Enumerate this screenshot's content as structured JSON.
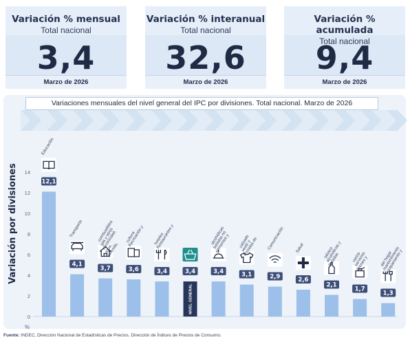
{
  "kpis": [
    {
      "title": "Variación % mensual",
      "subtitle": "Total nacional",
      "value": "3,4",
      "date": "Marzo de 2026"
    },
    {
      "title": "Variación % interanual",
      "subtitle": "Total nacional",
      "value": "32,6",
      "date": "Marzo de 2026"
    },
    {
      "title": "Variación % acumulada",
      "subtitle": "Total nacional",
      "value": "9,4",
      "date": "Marzo de 2026"
    }
  ],
  "source": {
    "label": "Fuente:",
    "text": "INDEC, Dirección Nacional de Estadísticas de Precios. Dirección de Índices de Precios de Consumo."
  },
  "colors": {
    "bar": "#9cc0e9",
    "bar_highlight": "#25365a",
    "label_box": "#3d4e78",
    "text": "#1f2a44"
  },
  "chart_data": {
    "type": "bar",
    "title": "Variaciones mensuales del nivel general del IPC por divisiones. Total nacional. Marzo de 2026",
    "ylabel": "Variación por divisiones",
    "yunit": "%",
    "ylim": [
      0,
      14
    ],
    "yticks": [
      0,
      2,
      4,
      6,
      8,
      10,
      12,
      14
    ],
    "grid": false,
    "highlight_index": 5,
    "highlight_text": "NIVEL GENERAL",
    "categories": [
      "Educación",
      "Transporte",
      "Vivienda, agua, electricidad, gas y otros combustibles",
      "Recreación y cultura",
      "Restaurantes y hoteles",
      "Nivel general",
      "Alimentos y bebidas no alcohólicas",
      "Prendas de vestir y calzado",
      "Comunicación",
      "Salud",
      "Bebidas alcohólicas y tabaco",
      "Bienes y servicios varios",
      "Equipamiento y mantenimiento del hogar"
    ],
    "values": [
      12.1,
      4.1,
      3.7,
      3.6,
      3.4,
      3.4,
      3.4,
      3.1,
      2.9,
      2.6,
      2.1,
      1.7,
      1.3
    ],
    "value_labels": [
      "12,1",
      "4,1",
      "3,7",
      "3,6",
      "3,4",
      "3,4",
      "3,4",
      "3,1",
      "2,9",
      "2,6",
      "2,1",
      "1,7",
      "1,3"
    ],
    "icons": [
      "book-icon",
      "car-icon",
      "house-icon",
      "tickets-icon",
      "cutlery-icon",
      "basket-icon",
      "food-icon",
      "shirt-icon",
      "wifi-icon",
      "cross-icon",
      "bottle-icon",
      "perfume-icon",
      "tools-icon"
    ]
  }
}
